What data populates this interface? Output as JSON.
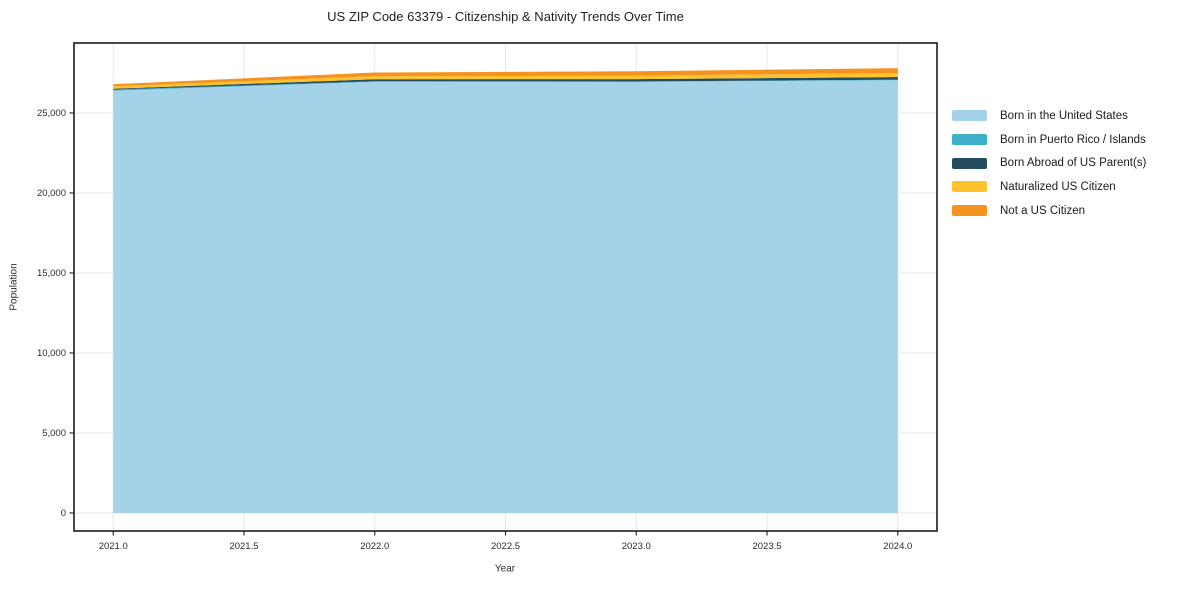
{
  "title": "US ZIP Code 63379 - Citizenship & Nativity Trends Over Time",
  "chart_data": {
    "type": "area",
    "stacked": true,
    "title": "US ZIP Code 63379 - Citizenship & Nativity Trends Over Time",
    "xlabel": "Year",
    "ylabel": "Population",
    "x": [
      2021,
      2022,
      2023,
      2024
    ],
    "series": [
      {
        "name": "Born in the United States",
        "color": "#a4d2e8",
        "values": [
          26400,
          26950,
          26950,
          27050
        ]
      },
      {
        "name": "Born in Puerto Rico / Islands",
        "color": "#3cb0c8",
        "values": [
          60,
          30,
          20,
          30
        ]
      },
      {
        "name": "Born Abroad of US Parent(s)",
        "color": "#254c5e",
        "values": [
          60,
          130,
          150,
          170
        ]
      },
      {
        "name": "Naturalized US Citizen",
        "color": "#fcc32c",
        "values": [
          150,
          190,
          210,
          250
        ]
      },
      {
        "name": "Not a US Citizen",
        "color": "#f59220",
        "values": [
          130,
          230,
          280,
          300
        ]
      }
    ],
    "x_ticks": {
      "values": [
        2021.0,
        2021.5,
        2022.0,
        2022.5,
        2023.0,
        2023.5,
        2024.0
      ],
      "labels": [
        "2021.0",
        "2021.5",
        "2022.0",
        "2022.5",
        "2023.0",
        "2023.5",
        "2024.0"
      ]
    },
    "y_ticks": {
      "values": [
        0,
        5000,
        10000,
        15000,
        20000,
        25000
      ],
      "labels": [
        "0",
        "5,000",
        "10,000",
        "15,000",
        "20,000",
        "25,000"
      ]
    },
    "xlim": [
      2020.85,
      2024.15
    ],
    "ylim": [
      -1125,
      29375
    ],
    "grid": true,
    "grid_color": "#e7e7e7",
    "spine_color": "#1c1c1c",
    "legend_position": "right-outside"
  }
}
